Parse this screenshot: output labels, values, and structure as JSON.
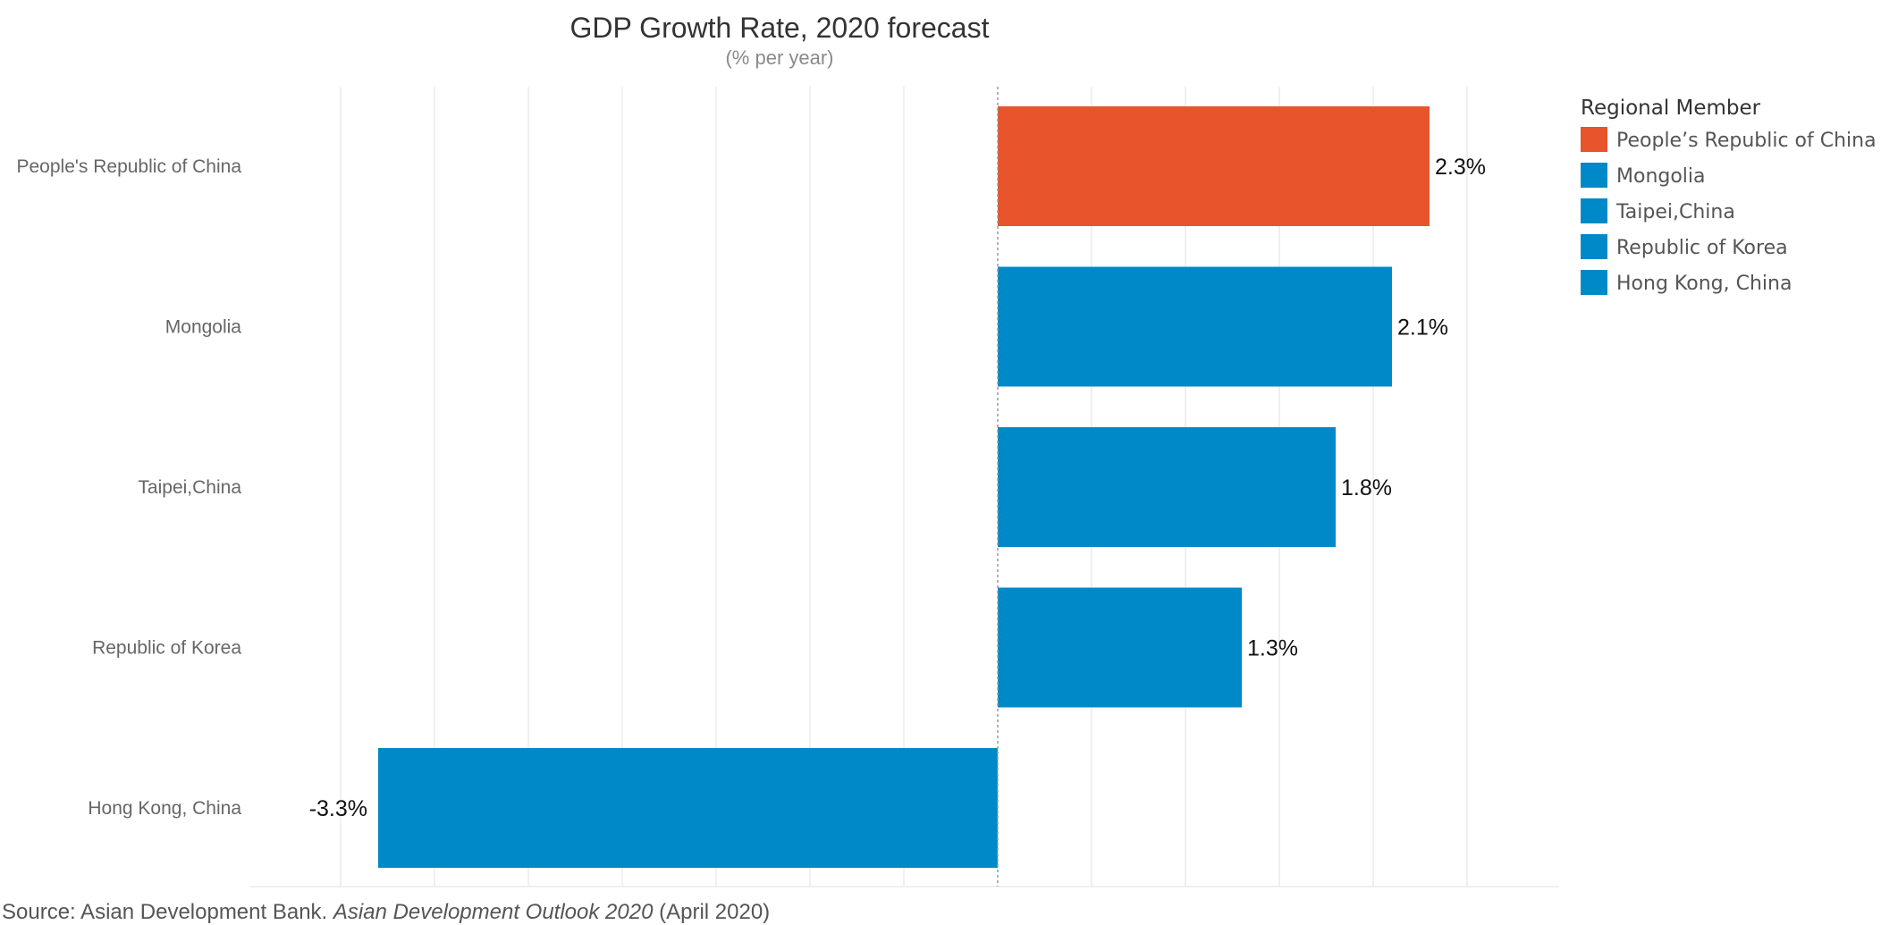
{
  "chart_data": {
    "type": "bar",
    "orientation": "horizontal",
    "title": "GDP Growth Rate, 2020 forecast",
    "subtitle": "(% per year)",
    "categories": [
      "People's Republic of China",
      "Mongolia",
      "Taipei,China",
      "Republic of Korea",
      "Hong Kong, China"
    ],
    "values": [
      2.3,
      2.1,
      1.8,
      1.3,
      -3.3
    ],
    "value_labels": [
      "2.3%",
      "2.1%",
      "1.8%",
      "1.3%",
      "-3.3%"
    ],
    "bar_colors": [
      "#E8542B",
      "#0089C8",
      "#0089C8",
      "#0089C8",
      "#0089C8"
    ],
    "xlim": [
      -4,
      3
    ],
    "grid": true,
    "legend": {
      "title": "Regional Member",
      "position": "right",
      "items": [
        {
          "label": "People’s Republic of China",
          "color": "#E8542B"
        },
        {
          "label": "Mongolia",
          "color": "#0089C8"
        },
        {
          "label": "Taipei,China",
          "color": "#0089C8"
        },
        {
          "label": "Republic of Korea",
          "color": "#0089C8"
        },
        {
          "label": "Hong Kong, China",
          "color": "#0089C8"
        }
      ]
    }
  },
  "source": {
    "prefix": "Source: Asian Development Bank. ",
    "publication": "Asian Development Outlook 2020",
    "suffix": " (April 2020)"
  }
}
